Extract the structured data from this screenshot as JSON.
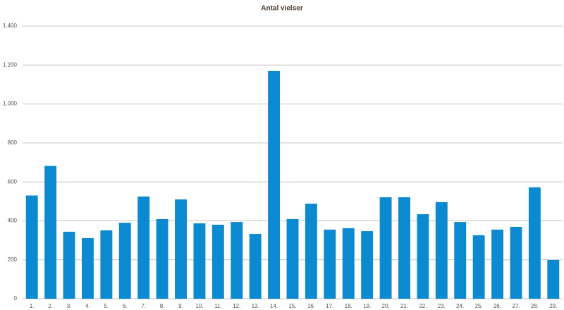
{
  "chart_data": {
    "type": "bar",
    "title": "Antal vielser",
    "categories": [
      "1.",
      "2.",
      "3.",
      "4.",
      "5.",
      "6.",
      "7.",
      "8.",
      "9.",
      "10.",
      "11.",
      "12.",
      "13.",
      "14.",
      "15.",
      "16.",
      "17.",
      "18.",
      "19.",
      "20.",
      "21.",
      "22.",
      "23.",
      "24.",
      "25.",
      "26.",
      "27.",
      "28.",
      "29."
    ],
    "values": [
      530,
      682,
      344,
      311,
      351,
      390,
      525,
      409,
      510,
      387,
      380,
      394,
      333,
      1169,
      409,
      488,
      355,
      362,
      347,
      521,
      521,
      434,
      496,
      394,
      326,
      355,
      369,
      572,
      199
    ],
    "color": "#0b8ad1",
    "ylim": [
      0,
      1400
    ],
    "yticks": [
      0,
      200,
      400,
      600,
      800,
      {
        "value": 1000,
        "label": "1.000"
      },
      {
        "value": 1200,
        "label": "1.200"
      },
      {
        "value": 1400,
        "label": "1.400"
      }
    ],
    "grid": true
  }
}
